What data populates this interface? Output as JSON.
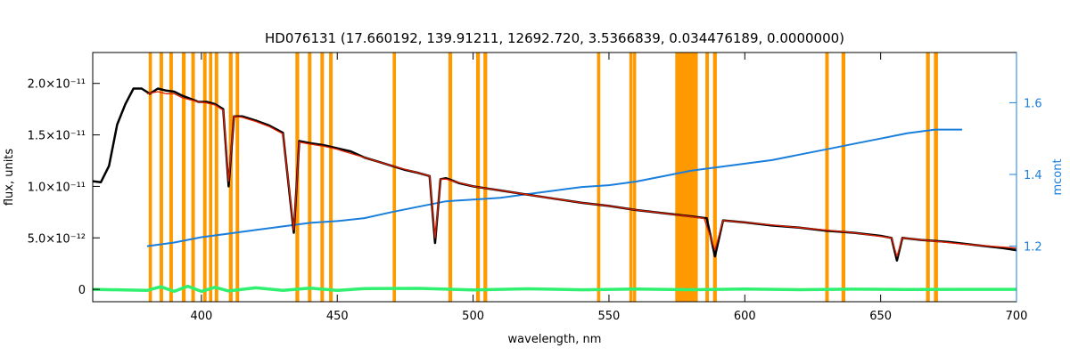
{
  "chart_data": {
    "type": "line",
    "title": "HD076131    (17.660192, 139.91211, 12692.720, 3.5366839, 0.034476189, 0.0000000)",
    "xlabel": "wavelength, nm",
    "ylabel": "flux, units",
    "ylabel_right": "mcont",
    "xlim": [
      360,
      700
    ],
    "ylim": [
      -1.2e-12,
      2.3e-11
    ],
    "ylim_right": [
      1.045,
      1.74
    ],
    "x_ticks": [
      {
        "value": 400,
        "label": "400"
      },
      {
        "value": 450,
        "label": "450"
      },
      {
        "value": 500,
        "label": "500"
      },
      {
        "value": 550,
        "label": "550"
      },
      {
        "value": 600,
        "label": "600"
      },
      {
        "value": 650,
        "label": "650"
      },
      {
        "value": 700,
        "label": "700"
      }
    ],
    "y_ticks": [
      {
        "value": 0,
        "label": "0"
      },
      {
        "value": 5e-12,
        "label": "5.0×10⁻¹²"
      },
      {
        "value": 1e-11,
        "label": "1.0×10⁻¹¹"
      },
      {
        "value": 1.5e-11,
        "label": "1.5×10⁻¹¹"
      },
      {
        "value": 2e-11,
        "label": "2.0×10⁻¹¹"
      }
    ],
    "y_ticks_right": [
      {
        "value": 1.2,
        "label": "1.2"
      },
      {
        "value": 1.4,
        "label": "1.4"
      },
      {
        "value": 1.6,
        "label": "1.6"
      }
    ],
    "grid": false,
    "colors": {
      "observed": "#000000",
      "model": "#e02000",
      "residual": "#30f070",
      "mcont": "#1a7fdc",
      "mask": "#ff9900",
      "right_axis": "#1a7fdc"
    },
    "masked_regions_nm": [
      [
        380.6,
        381.8
      ],
      [
        384.6,
        385.9
      ],
      [
        388.2,
        389.5
      ],
      [
        392.8,
        394.2
      ],
      [
        396.3,
        397.6
      ],
      [
        400.6,
        401.9
      ],
      [
        402.8,
        404.0
      ],
      [
        404.9,
        406.2
      ],
      [
        410.1,
        411.5
      ],
      [
        412.6,
        413.9
      ],
      [
        434.6,
        436.0
      ],
      [
        439.2,
        440.5
      ],
      [
        443.8,
        445.1
      ],
      [
        447.0,
        448.3
      ],
      [
        470.4,
        471.6
      ],
      [
        490.9,
        492.3
      ],
      [
        501.1,
        502.5
      ],
      [
        503.8,
        505.2
      ],
      [
        545.6,
        546.8
      ],
      [
        557.5,
        558.7
      ],
      [
        558.9,
        560.0
      ],
      [
        574.4,
        582.7
      ],
      [
        585.5,
        586.8
      ],
      [
        588.3,
        589.7
      ],
      [
        629.6,
        630.9
      ],
      [
        635.6,
        637.0
      ],
      [
        666.7,
        668.1
      ],
      [
        669.6,
        671.1
      ]
    ],
    "series": [
      {
        "kind": "observed",
        "x": [
          360,
          363,
          366,
          369,
          372,
          375,
          378,
          381,
          384,
          387,
          390,
          393,
          396,
          399,
          402,
          405,
          408,
          410,
          412,
          415,
          420,
          425,
          430,
          434,
          436,
          440,
          445,
          450,
          455,
          460,
          465,
          470,
          475,
          480,
          484,
          486,
          488,
          490,
          495,
          500,
          505,
          510,
          520,
          530,
          540,
          550,
          560,
          570,
          580,
          586,
          589,
          592,
          600,
          610,
          620,
          630,
          640,
          650,
          654,
          656,
          658,
          665,
          675,
          685,
          695,
          700
        ],
        "y": [
          1.05e-11,
          1.04e-11,
          1.2e-11,
          1.6e-11,
          1.8e-11,
          1.95e-11,
          1.95e-11,
          1.9e-11,
          1.95e-11,
          1.93e-11,
          1.92e-11,
          1.88e-11,
          1.85e-11,
          1.82e-11,
          1.82e-11,
          1.8e-11,
          1.75e-11,
          1e-11,
          1.68e-11,
          1.68e-11,
          1.64e-11,
          1.59e-11,
          1.52e-11,
          5.5e-12,
          1.44e-11,
          1.42e-11,
          1.4e-11,
          1.37e-11,
          1.34e-11,
          1.28e-11,
          1.24e-11,
          1.2e-11,
          1.16e-11,
          1.13e-11,
          1.1e-11,
          4.5e-12,
          1.07e-11,
          1.08e-11,
          1.03e-11,
          1e-11,
          9.8e-12,
          9.6e-12,
          9.2e-12,
          8.8e-12,
          8.4e-12,
          8.1e-12,
          7.7e-12,
          7.4e-12,
          7.1e-12,
          6.9e-12,
          3.2e-12,
          6.7e-12,
          6.5e-12,
          6.2e-12,
          6e-12,
          5.7e-12,
          5.5e-12,
          5.2e-12,
          5e-12,
          2.8e-12,
          5e-12,
          4.8e-12,
          4.6e-12,
          4.3e-12,
          4e-12,
          3.8e-12
        ]
      },
      {
        "kind": "model",
        "x": [
          380,
          384,
          387,
          390,
          393,
          396,
          399,
          402,
          405,
          408,
          410,
          412,
          415,
          420,
          425,
          430,
          434,
          436,
          440,
          445,
          450,
          460,
          470,
          480,
          484,
          486,
          488,
          490,
          500,
          510,
          520,
          530,
          540,
          550,
          560,
          570,
          585,
          589,
          592,
          600,
          620,
          640,
          654,
          656,
          658,
          680,
          700
        ],
        "y": [
          1.9e-11,
          1.92e-11,
          1.9e-11,
          1.9e-11,
          1.86e-11,
          1.84e-11,
          1.82e-11,
          1.81e-11,
          1.79e-11,
          1.74e-11,
          1.05e-11,
          1.68e-11,
          1.67e-11,
          1.63e-11,
          1.58e-11,
          1.51e-11,
          5.8e-12,
          1.43e-11,
          1.41e-11,
          1.39e-11,
          1.36e-11,
          1.28e-11,
          1.2e-11,
          1.13e-11,
          1.1e-11,
          5e-12,
          1.07e-11,
          1.07e-11,
          1e-11,
          9.6e-12,
          9.2e-12,
          8.8e-12,
          8.4e-12,
          8.1e-12,
          7.7e-12,
          7.4e-12,
          6.9e-12,
          3.8e-12,
          6.7e-12,
          6.5e-12,
          6e-12,
          5.5e-12,
          5e-12,
          3.2e-12,
          5e-12,
          4.4e-12,
          4e-12
        ]
      },
      {
        "kind": "mcont",
        "axis": "right",
        "x": [
          380,
          390,
          400,
          410,
          420,
          430,
          440,
          450,
          460,
          470,
          480,
          490,
          500,
          510,
          520,
          530,
          540,
          550,
          560,
          570,
          580,
          590,
          600,
          610,
          620,
          630,
          640,
          650,
          660,
          670,
          680
        ],
        "y": [
          1.2,
          1.21,
          1.225,
          1.235,
          1.245,
          1.255,
          1.265,
          1.27,
          1.278,
          1.295,
          1.31,
          1.325,
          1.33,
          1.335,
          1.345,
          1.355,
          1.365,
          1.37,
          1.38,
          1.395,
          1.41,
          1.42,
          1.43,
          1.44,
          1.455,
          1.47,
          1.485,
          1.5,
          1.515,
          1.525,
          1.525
        ]
      },
      {
        "kind": "residual",
        "x": [
          360,
          380,
          385,
          390,
          395,
          400,
          405,
          410,
          420,
          430,
          440,
          450,
          460,
          480,
          500,
          520,
          540,
          560,
          580,
          600,
          620,
          640,
          660,
          680,
          700
        ],
        "y": [
          0,
          -1e-13,
          2.5e-13,
          -2e-13,
          3e-13,
          -2e-13,
          2e-13,
          -1.5e-13,
          1.5e-13,
          -1e-13,
          1.2e-13,
          -1e-13,
          8e-14,
          1e-13,
          -5e-14,
          5e-14,
          -4e-14,
          4e-14,
          -3e-14,
          3e-14,
          -3e-14,
          2e-14,
          -2e-14,
          0,
          0
        ]
      }
    ]
  }
}
